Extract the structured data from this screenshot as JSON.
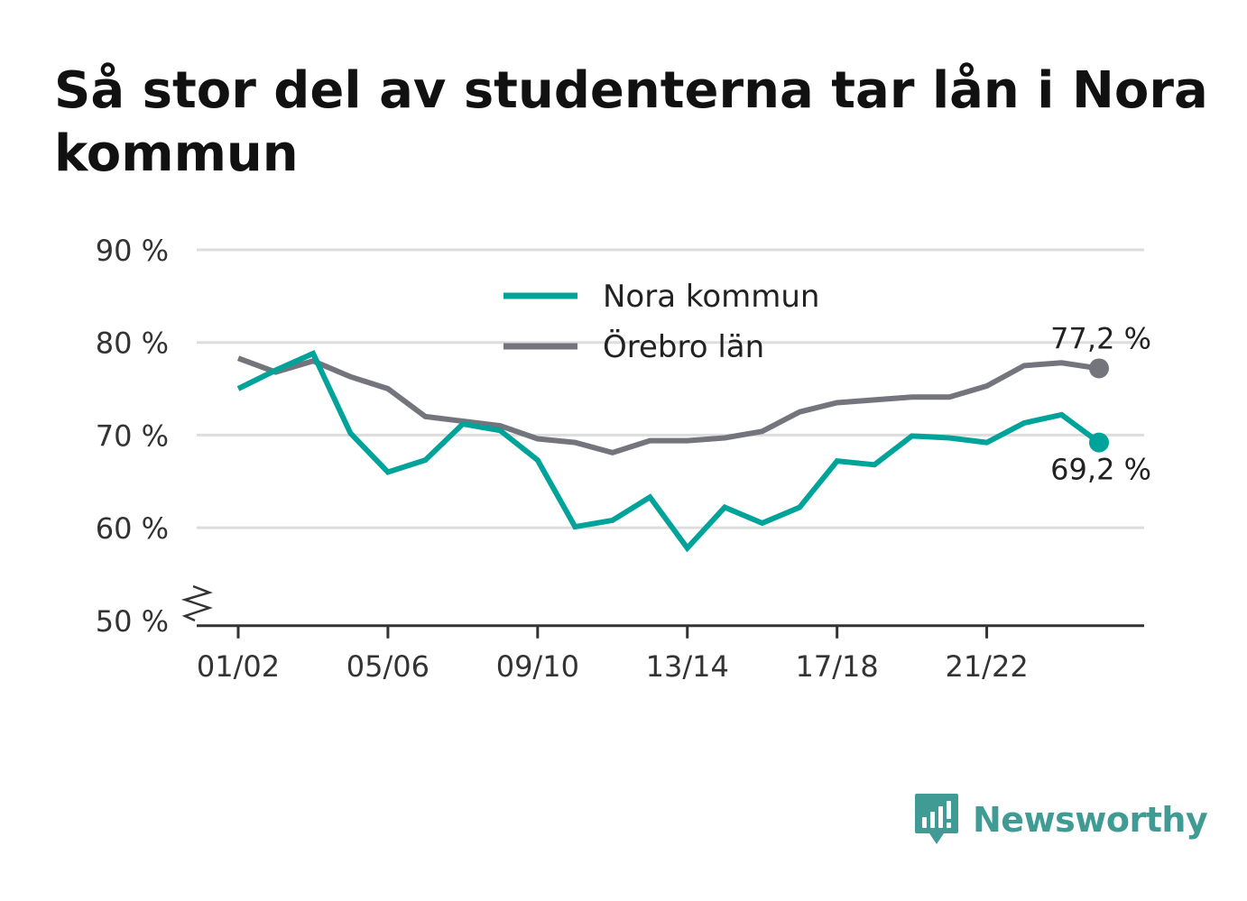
{
  "title": "Så stor del av studenterna tar lån i Nora kommun",
  "colors": {
    "nora": "#00a39a",
    "orebro": "#74747c",
    "grid": "#dddddd",
    "axis": "#333333",
    "text": "#333333",
    "brand": "#3f9b94"
  },
  "brand": {
    "name": "Newsworthy",
    "icon": "bar-chart-speech-bubble-icon"
  },
  "chart_data": {
    "type": "line",
    "title": "Så stor del av studenterna tar lån i Nora kommun",
    "xlabel": "",
    "ylabel": "",
    "x": [
      "01/02",
      "02/03",
      "03/04",
      "04/05",
      "05/06",
      "06/07",
      "07/08",
      "08/09",
      "09/10",
      "10/11",
      "11/12",
      "12/13",
      "13/14",
      "14/15",
      "15/16",
      "16/17",
      "17/18",
      "18/19",
      "19/20",
      "20/21",
      "21/22",
      "22/23",
      "23/24",
      "24/25"
    ],
    "x_tick_labels": [
      "01/02",
      "05/06",
      "09/10",
      "13/14",
      "17/18",
      "21/22"
    ],
    "y_ticks": [
      50,
      60,
      70,
      80,
      90
    ],
    "y_tick_labels": [
      "50 %",
      "60 %",
      "70 %",
      "80 %",
      "90 %"
    ],
    "ylim": [
      50,
      90
    ],
    "y_axis_break": true,
    "grid": true,
    "legend_position": "top-center",
    "series": [
      {
        "name": "Nora kommun",
        "values": [
          75.0,
          77.0,
          78.8,
          70.2,
          66.0,
          67.3,
          71.2,
          70.5,
          67.3,
          60.1,
          60.8,
          63.3,
          57.8,
          62.2,
          60.5,
          62.2,
          67.2,
          66.8,
          69.9,
          69.7,
          69.2,
          71.3,
          72.2,
          69.2
        ],
        "end_label": "69,2 %"
      },
      {
        "name": "Örebro län",
        "values": [
          78.3,
          76.8,
          78.0,
          76.3,
          75.0,
          72.0,
          71.5,
          71.0,
          69.6,
          69.2,
          68.1,
          69.4,
          69.4,
          69.7,
          70.4,
          72.5,
          73.5,
          73.8,
          74.1,
          74.1,
          75.3,
          77.5,
          77.8,
          77.2
        ],
        "end_label": "77,2 %"
      }
    ]
  }
}
